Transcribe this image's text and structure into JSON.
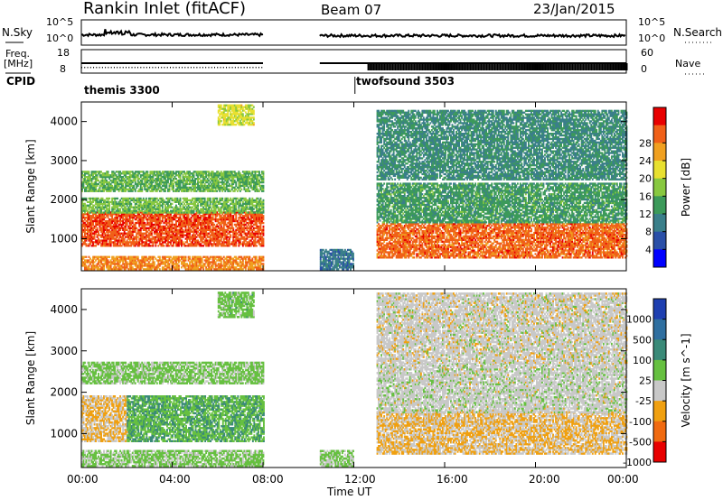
{
  "header": {
    "station": "Rankin Inlet (fitACF)",
    "beam": "Beam 07",
    "date": "23/Jan/2015"
  },
  "nsky_panel": {
    "left_label": "N.Sky",
    "right_label": "N.Search",
    "left_ticks": [
      "10^5",
      "10^0"
    ],
    "right_ticks": [
      "10^5",
      "10^0"
    ]
  },
  "freq_panel": {
    "left_label_1": "Freq.",
    "left_label_2": "[MHz]",
    "right_label": "Nave",
    "left_ticks": [
      "18",
      "8"
    ],
    "right_ticks": [
      "60",
      "0"
    ]
  },
  "cpid": {
    "label": "CPID",
    "modes": [
      {
        "name": "themis 3300",
        "start_hour": 0
      },
      {
        "name": "twofsound 3503",
        "start_hour": 12.1
      }
    ]
  },
  "x_axis": {
    "label": "Time UT",
    "ticks": [
      "00:00",
      "04:00",
      "08:00",
      "12:00",
      "16:00",
      "20:00",
      "00:00"
    ],
    "range_hours": [
      0,
      24
    ]
  },
  "chart_data": [
    {
      "type": "heatmap",
      "title": "",
      "ylabel": "Slant Range [km]",
      "xlabel": "",
      "ylim": [
        180,
        4500
      ],
      "y_ticks": [
        1000,
        2000,
        3000,
        4000
      ],
      "colorbar": {
        "label": "Power [dB]",
        "ticks": [
          "4",
          "8",
          "12",
          "16",
          "20",
          "24",
          "28"
        ],
        "range": [
          0,
          30
        ],
        "colors": [
          "#0000ff",
          "#2a4fa8",
          "#3a7f8a",
          "#3c9a5a",
          "#88c840",
          "#e8e030",
          "#f0a020",
          "#f06018",
          "#e80000"
        ]
      },
      "echo_regions": [
        {
          "t0": 0.0,
          "t1": 8.0,
          "r0": 800,
          "r1": 1700,
          "value": 27
        },
        {
          "t0": 0.0,
          "t1": 8.0,
          "r0": 1650,
          "r1": 2050,
          "value": 14
        },
        {
          "t0": 0.0,
          "t1": 8.0,
          "r0": 2200,
          "r1": 2700,
          "value": 13
        },
        {
          "t0": 0.0,
          "t1": 8.0,
          "r0": 200,
          "r1": 520,
          "value": 24
        },
        {
          "t0": 10.5,
          "t1": 12.0,
          "r0": 200,
          "r1": 700,
          "value": 7
        },
        {
          "t0": 13.0,
          "t1": 24.0,
          "r0": 500,
          "r1": 1400,
          "value": 26
        },
        {
          "t0": 13.0,
          "t1": 24.0,
          "r0": 1400,
          "r1": 2400,
          "value": 11
        },
        {
          "t0": 13.0,
          "t1": 24.0,
          "r0": 2500,
          "r1": 4300,
          "value": 9
        },
        {
          "t0": 6.0,
          "t1": 7.6,
          "r0": 3900,
          "r1": 4400,
          "value": 18
        }
      ]
    },
    {
      "type": "heatmap",
      "title": "",
      "ylabel": "Slant Range [km]",
      "xlabel": "",
      "ylim": [
        180,
        4500
      ],
      "y_ticks": [
        1000,
        2000,
        3000,
        4000
      ],
      "colorbar": {
        "label": "Velocity [m s^-1]",
        "ticks": [
          "1000",
          "500",
          "100",
          "25",
          "-25",
          "-100",
          "-500",
          "-1000"
        ],
        "range": [
          -1000,
          1000
        ],
        "colors": [
          "#1e3fb0",
          "#2f6fa0",
          "#3a8a78",
          "#66c040",
          "#c8c8c8",
          "#f0a010",
          "#f06a10",
          "#e80000"
        ]
      },
      "echo_regions": [
        {
          "t0": 0.0,
          "t1": 2.0,
          "r0": 800,
          "r1": 1900,
          "value": -300
        },
        {
          "t0": 2.0,
          "t1": 8.0,
          "r0": 800,
          "r1": 1900,
          "value": 250
        },
        {
          "t0": 0.0,
          "t1": 8.0,
          "r0": 200,
          "r1": 600,
          "value": 60
        },
        {
          "t0": 0.0,
          "t1": 8.0,
          "r0": 2200,
          "r1": 2700,
          "value": 80
        },
        {
          "t0": 10.5,
          "t1": 12.0,
          "r0": 200,
          "r1": 600,
          "value": 40
        },
        {
          "t0": 13.0,
          "t1": 24.0,
          "r0": 500,
          "r1": 1500,
          "value": -300
        },
        {
          "t0": 13.0,
          "t1": 24.0,
          "r0": 1500,
          "r1": 2700,
          "value": -120
        },
        {
          "t0": 13.0,
          "t1": 24.0,
          "r0": 2700,
          "r1": 4400,
          "value": -150
        },
        {
          "t0": 6.0,
          "t1": 7.6,
          "r0": 3800,
          "r1": 4400,
          "value": 120
        }
      ]
    }
  ]
}
